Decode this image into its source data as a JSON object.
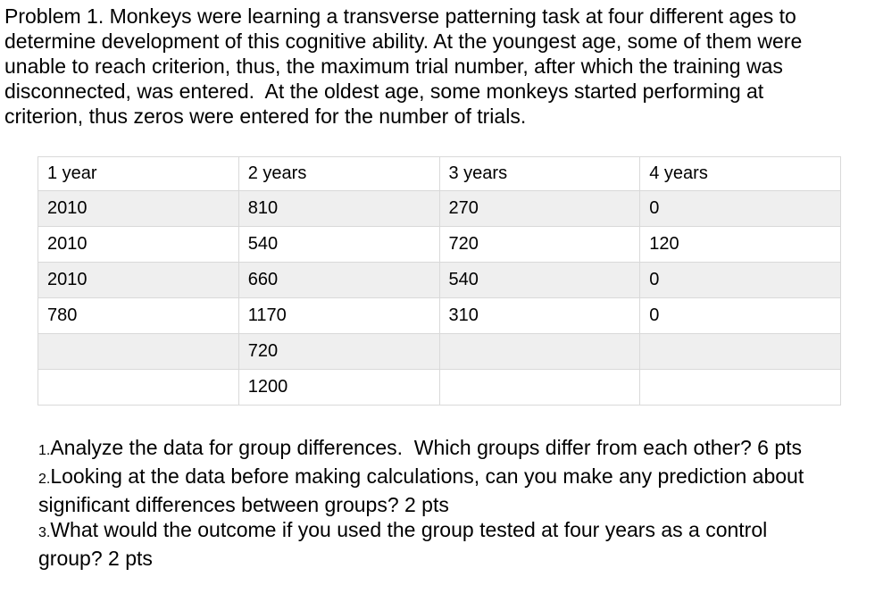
{
  "page": {
    "background": "#ffffff",
    "text_color": "#000000"
  },
  "problem": {
    "text": "Problem 1. Monkeys were learning a transverse patterning task at four different ages to determine development of this cognitive ability. At the youngest age, some of them were unable to reach criterion, thus, the maximum trial number, after which the training was disconnected, was entered.  At the oldest age, some monkeys started performing at criterion, thus zeros were entered for the number of trials."
  },
  "data_table": {
    "stripe_color": "#efefef",
    "border_color": "#d9d9d9",
    "columns": [
      "1 year",
      "2 years",
      "3 years",
      "4 years"
    ],
    "rows": [
      [
        "2010",
        "810",
        "270",
        "0"
      ],
      [
        "2010",
        "540",
        "720",
        "120"
      ],
      [
        "2010",
        "660",
        "540",
        "0"
      ],
      [
        "780",
        "1170",
        "310",
        "0"
      ],
      [
        "",
        "720",
        "",
        ""
      ],
      [
        "",
        "1200",
        "",
        ""
      ]
    ]
  },
  "questions": [
    {
      "number": "1.",
      "text": "Analyze the data for group differences.  Which groups differ from each other? 6 pts"
    },
    {
      "number": "2.",
      "text": "Looking at the data before making calculations, can you make any prediction about significant differences between groups? 2 pts"
    },
    {
      "number": "3.",
      "text": "What would the outcome if you used the group tested at four years as a control group? 2 pts"
    }
  ]
}
